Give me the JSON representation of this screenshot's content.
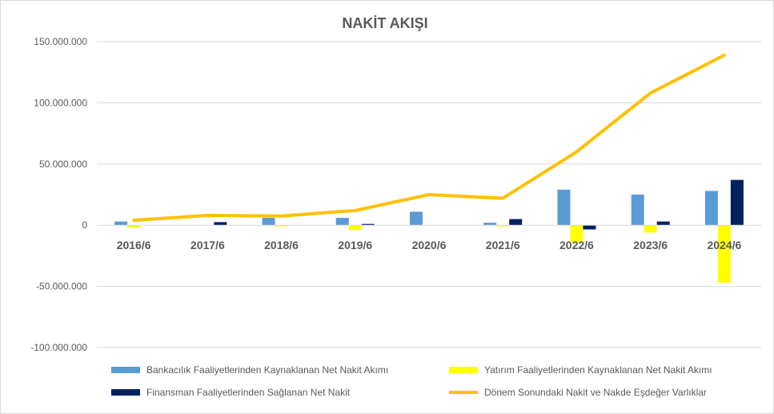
{
  "chart_data": {
    "type": "bar",
    "title": "NAKİT AKIŞI",
    "categories": [
      "2016/6",
      "2017/6",
      "2018/6",
      "2019/6",
      "2020/6",
      "2021/6",
      "2022/6",
      "2023/6",
      "2024/6"
    ],
    "ylim": [
      -100000000,
      150000000
    ],
    "yticks": [
      150000000,
      100000000,
      50000000,
      0,
      -50000000,
      -100000000
    ],
    "ytick_labels": [
      "150.000.000",
      "100.000.000",
      "50.000.000",
      "0",
      "-50.000.000",
      "-100.000.000"
    ],
    "grid": true,
    "legend_position": "bottom",
    "series": [
      {
        "name": "Bankacılık Faaliyetlerinden Kaynaklanan Net Nakit Akımı",
        "type": "bar",
        "color": "#5b9bd5",
        "values": [
          3000000,
          0,
          6000000,
          6000000,
          11000000,
          2000000,
          29000000,
          25000000,
          28000000
        ]
      },
      {
        "name": "Yatırım Faaliyetlerinden Kaynaklanan Net Nakit Akımı",
        "type": "bar",
        "color": "#ffff00",
        "values": [
          -2000000,
          0,
          -1000000,
          -4000000,
          0,
          -1000000,
          -14000000,
          -6000000,
          -47000000
        ]
      },
      {
        "name": "Finansman Faaliyetlerinden Sağlanan Net Nakit",
        "type": "bar",
        "color": "#002060",
        "values": [
          0,
          2500000,
          0,
          1000000,
          0,
          5000000,
          -3500000,
          3000000,
          37000000
        ]
      },
      {
        "name": "Dönem Sonundaki Nakit ve Nakde Eşdeğer Varlıklar",
        "type": "line",
        "color": "#ffc000",
        "values": [
          4000000,
          8000000,
          7500000,
          12000000,
          25000000,
          22000000,
          60000000,
          108000000,
          139000000
        ]
      }
    ]
  }
}
